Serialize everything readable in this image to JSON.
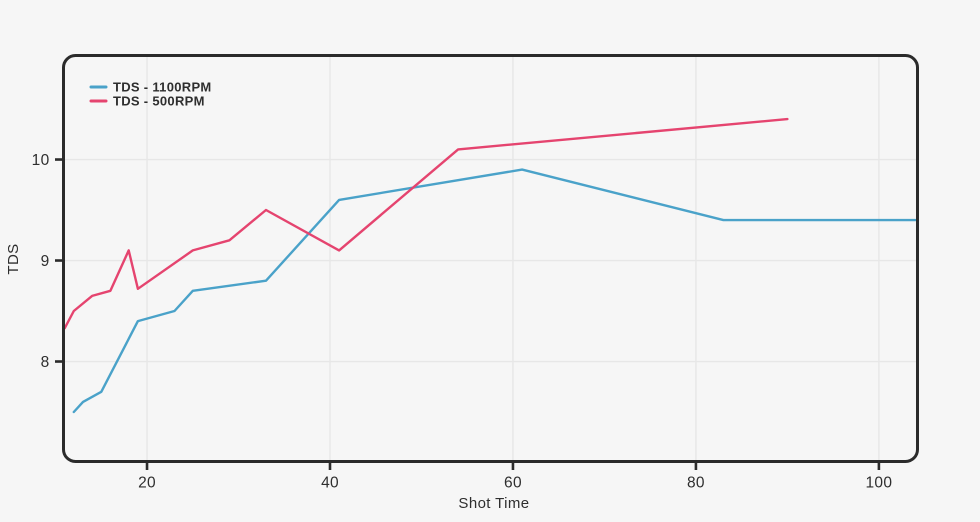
{
  "colors": {
    "background": "#f6f6f6",
    "frame": "#2b2b2b",
    "grid": "#e7e7e7",
    "tick": "#2b2b2b",
    "text": "#2e2e2e",
    "series_blue": "#4AA2C9",
    "series_red": "#E5446F"
  },
  "chart_data": {
    "type": "line",
    "title": "",
    "xlabel": "Shot Time",
    "ylabel": "TDS",
    "x_ticks": [
      20,
      40,
      60,
      80,
      100
    ],
    "y_ticks": [
      8,
      9,
      10
    ],
    "x_range": [
      10.87,
      104.22
    ],
    "y_range": [
      7.01,
      11.03
    ],
    "grid": true,
    "legend_position": "top-left",
    "series": [
      {
        "name": "TDS - 1100RPM",
        "color": "#4AA2C9",
        "points": [
          [
            12,
            7.5
          ],
          [
            13,
            7.6
          ],
          [
            15,
            7.7
          ],
          [
            19,
            8.4
          ],
          [
            23,
            8.5
          ],
          [
            25,
            8.7
          ],
          [
            33,
            8.8
          ],
          [
            41,
            9.6
          ],
          [
            61,
            9.9
          ],
          [
            83,
            9.4
          ],
          [
            104,
            9.4
          ]
        ]
      },
      {
        "name": "TDS - 500RPM",
        "color": "#E5446F",
        "points": [
          [
            11,
            8.33
          ],
          [
            12,
            8.5
          ],
          [
            14,
            8.65
          ],
          [
            16,
            8.7
          ],
          [
            18,
            9.1
          ],
          [
            19,
            8.72
          ],
          [
            25,
            9.1
          ],
          [
            29,
            9.2
          ],
          [
            33,
            9.5
          ],
          [
            41,
            9.1
          ],
          [
            54,
            10.1
          ],
          [
            90,
            10.4
          ]
        ]
      }
    ]
  }
}
